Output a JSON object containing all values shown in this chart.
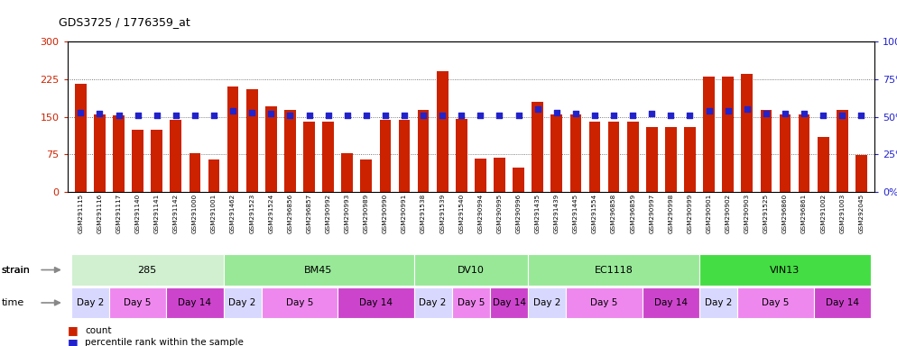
{
  "title": "GDS3725 / 1776359_at",
  "samples": [
    "GSM291115",
    "GSM291116",
    "GSM291117",
    "GSM291140",
    "GSM291141",
    "GSM291142",
    "GSM291000",
    "GSM291001",
    "GSM291462",
    "GSM291523",
    "GSM291524",
    "GSM296856",
    "GSM296857",
    "GSM290992",
    "GSM290993",
    "GSM290989",
    "GSM290990",
    "GSM290991",
    "GSM291538",
    "GSM291539",
    "GSM291540",
    "GSM290994",
    "GSM290995",
    "GSM290996",
    "GSM291435",
    "GSM291439",
    "GSM291445",
    "GSM291554",
    "GSM296858",
    "GSM296859",
    "GSM290997",
    "GSM290998",
    "GSM290999",
    "GSM290901",
    "GSM290902",
    "GSM290903",
    "GSM291525",
    "GSM296860",
    "GSM296861",
    "GSM291002",
    "GSM291003",
    "GSM292045"
  ],
  "counts": [
    215,
    155,
    153,
    125,
    125,
    143,
    78,
    65,
    210,
    205,
    170,
    163,
    140,
    140,
    78,
    65,
    143,
    143,
    163,
    240,
    145,
    67,
    68,
    48,
    180,
    155,
    155,
    140,
    140,
    140,
    130,
    130,
    130,
    230,
    230,
    235,
    163,
    155,
    155,
    110,
    163,
    73
  ],
  "percentile_ranks": [
    53,
    52,
    51,
    51,
    51,
    51,
    51,
    51,
    54,
    53,
    52,
    51,
    51,
    51,
    51,
    51,
    51,
    51,
    51,
    51,
    51,
    51,
    51,
    51,
    55,
    53,
    52,
    51,
    51,
    51,
    52,
    51,
    51,
    54,
    54,
    55,
    52,
    52,
    52,
    51,
    51,
    51
  ],
  "strains": [
    {
      "label": "285",
      "start": 0,
      "end": 7,
      "color": "#d0f0d0"
    },
    {
      "label": "BM45",
      "start": 8,
      "end": 17,
      "color": "#98e898"
    },
    {
      "label": "DV10",
      "start": 18,
      "end": 23,
      "color": "#98e898"
    },
    {
      "label": "EC1118",
      "start": 24,
      "end": 32,
      "color": "#98e898"
    },
    {
      "label": "VIN13",
      "start": 33,
      "end": 41,
      "color": "#44dd44"
    }
  ],
  "time_groups": [
    {
      "label": "Day 2",
      "start": 0,
      "end": 1,
      "color": "#d8d8ff"
    },
    {
      "label": "Day 5",
      "start": 2,
      "end": 4,
      "color": "#ee88ee"
    },
    {
      "label": "Day 14",
      "start": 5,
      "end": 7,
      "color": "#cc44cc"
    },
    {
      "label": "Day 2",
      "start": 8,
      "end": 9,
      "color": "#d8d8ff"
    },
    {
      "label": "Day 5",
      "start": 10,
      "end": 13,
      "color": "#ee88ee"
    },
    {
      "label": "Day 14",
      "start": 14,
      "end": 17,
      "color": "#cc44cc"
    },
    {
      "label": "Day 2",
      "start": 18,
      "end": 19,
      "color": "#d8d8ff"
    },
    {
      "label": "Day 5",
      "start": 20,
      "end": 21,
      "color": "#ee88ee"
    },
    {
      "label": "Day 14",
      "start": 22,
      "end": 23,
      "color": "#cc44cc"
    },
    {
      "label": "Day 2",
      "start": 24,
      "end": 25,
      "color": "#d8d8ff"
    },
    {
      "label": "Day 5",
      "start": 26,
      "end": 29,
      "color": "#ee88ee"
    },
    {
      "label": "Day 14",
      "start": 30,
      "end": 32,
      "color": "#cc44cc"
    },
    {
      "label": "Day 2",
      "start": 33,
      "end": 34,
      "color": "#d8d8ff"
    },
    {
      "label": "Day 5",
      "start": 35,
      "end": 38,
      "color": "#ee88ee"
    },
    {
      "label": "Day 14",
      "start": 39,
      "end": 41,
      "color": "#cc44cc"
    }
  ],
  "ylim_left": [
    0,
    300
  ],
  "ylim_right": [
    0,
    100
  ],
  "yticks_left": [
    0,
    75,
    150,
    225,
    300
  ],
  "yticks_right": [
    0,
    25,
    50,
    75,
    100
  ],
  "bar_color": "#cc2200",
  "dot_color": "#2222cc",
  "bg_color": "#ffffff",
  "plot_bg": "#ffffff",
  "grid_color": "#555555"
}
